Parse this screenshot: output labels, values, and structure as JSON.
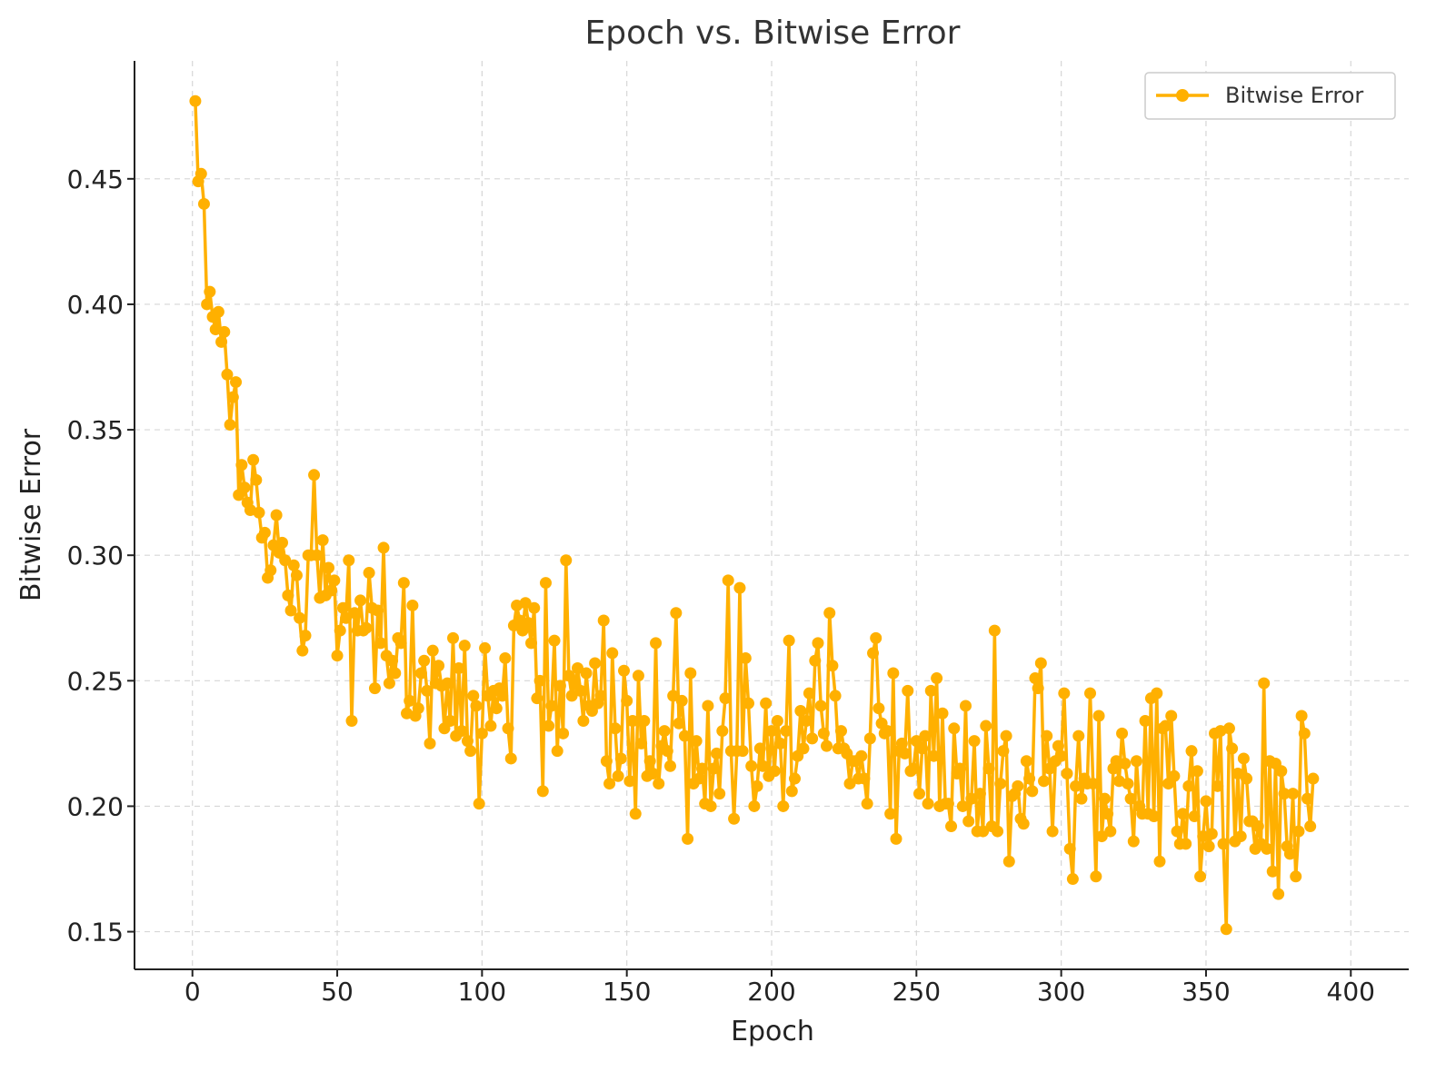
{
  "chart_data": {
    "type": "line",
    "title": "Epoch vs. Bitwise Error",
    "xlabel": "Epoch",
    "ylabel": "Bitwise Error",
    "xlim": [
      -20,
      420
    ],
    "ylim": [
      0.135,
      0.497
    ],
    "xticks": [
      0,
      50,
      100,
      150,
      200,
      250,
      300,
      350,
      400
    ],
    "xtick_labels": [
      "0",
      "50",
      "100",
      "150",
      "200",
      "250",
      "300",
      "350",
      "400"
    ],
    "yticks": [
      0.15,
      0.2,
      0.25,
      0.3,
      0.35,
      0.4,
      0.45
    ],
    "ytick_labels": [
      "0.15",
      "0.20",
      "0.25",
      "0.30",
      "0.35",
      "0.40",
      "0.45"
    ],
    "grid": true,
    "legend_position": "top-right",
    "series": [
      {
        "name": "Bitwise Error",
        "color": "#FFB000",
        "marker": "circle",
        "x_start": 1,
        "x_step": 1,
        "y": [
          0.481,
          0.449,
          0.452,
          0.44,
          0.4,
          0.405,
          0.395,
          0.39,
          0.397,
          0.385,
          0.389,
          0.372,
          0.352,
          0.363,
          0.369,
          0.324,
          0.336,
          0.327,
          0.321,
          0.318,
          0.338,
          0.33,
          0.317,
          0.307,
          0.309,
          0.291,
          0.294,
          0.304,
          0.316,
          0.301,
          0.305,
          0.298,
          0.284,
          0.278,
          0.296,
          0.292,
          0.275,
          0.262,
          0.268,
          0.3,
          0.3,
          0.332,
          0.3,
          0.283,
          0.306,
          0.284,
          0.295,
          0.286,
          0.29,
          0.26,
          0.27,
          0.279,
          0.275,
          0.298,
          0.234,
          0.277,
          0.27,
          0.282,
          0.27,
          0.271,
          0.293,
          0.279,
          0.247,
          0.278,
          0.265,
          0.303,
          0.26,
          0.249,
          0.258,
          0.253,
          0.267,
          0.265,
          0.289,
          0.237,
          0.242,
          0.28,
          0.236,
          0.239,
          0.253,
          0.258,
          0.246,
          0.225,
          0.262,
          0.249,
          0.256,
          0.248,
          0.231,
          0.249,
          0.234,
          0.267,
          0.228,
          0.255,
          0.23,
          0.264,
          0.226,
          0.222,
          0.244,
          0.24,
          0.201,
          0.229,
          0.263,
          0.244,
          0.232,
          0.246,
          0.239,
          0.247,
          0.244,
          0.259,
          0.231,
          0.219,
          0.272,
          0.28,
          0.274,
          0.27,
          0.281,
          0.273,
          0.265,
          0.279,
          0.243,
          0.25,
          0.206,
          0.289,
          0.232,
          0.24,
          0.266,
          0.222,
          0.248,
          0.229,
          0.298,
          0.252,
          0.244,
          0.249,
          0.255,
          0.246,
          0.234,
          0.253,
          0.24,
          0.238,
          0.257,
          0.241,
          0.244,
          0.274,
          0.218,
          0.209,
          0.261,
          0.231,
          0.212,
          0.219,
          0.254,
          0.242,
          0.21,
          0.234,
          0.197,
          0.252,
          0.225,
          0.234,
          0.212,
          0.218,
          0.213,
          0.265,
          0.209,
          0.224,
          0.23,
          0.222,
          0.216,
          0.244,
          0.277,
          0.233,
          0.242,
          0.228,
          0.187,
          0.253,
          0.209,
          0.226,
          0.211,
          0.215,
          0.201,
          0.24,
          0.2,
          0.215,
          0.221,
          0.205,
          0.23,
          0.243,
          0.29,
          0.222,
          0.195,
          0.222,
          0.287,
          0.222,
          0.259,
          0.241,
          0.216,
          0.2,
          0.208,
          0.223,
          0.216,
          0.241,
          0.212,
          0.23,
          0.214,
          0.234,
          0.225,
          0.2,
          0.23,
          0.266,
          0.206,
          0.211,
          0.22,
          0.238,
          0.223,
          0.234,
          0.245,
          0.227,
          0.258,
          0.265,
          0.24,
          0.229,
          0.224,
          0.277,
          0.256,
          0.244,
          0.223,
          0.23,
          0.223,
          0.221,
          0.209,
          0.218,
          0.218,
          0.211,
          0.22,
          0.211,
          0.201,
          0.227,
          0.261,
          0.267,
          0.239,
          0.233,
          0.229,
          0.23,
          0.197,
          0.253,
          0.187,
          0.222,
          0.225,
          0.221,
          0.246,
          0.214,
          0.215,
          0.226,
          0.205,
          0.223,
          0.228,
          0.201,
          0.246,
          0.22,
          0.251,
          0.2,
          0.237,
          0.201,
          0.201,
          0.192,
          0.231,
          0.213,
          0.215,
          0.2,
          0.24,
          0.194,
          0.203,
          0.226,
          0.19,
          0.205,
          0.19,
          0.232,
          0.215,
          0.192,
          0.27,
          0.19,
          0.209,
          0.222,
          0.228,
          0.178,
          0.204,
          0.205,
          0.208,
          0.195,
          0.193,
          0.218,
          0.211,
          0.206,
          0.251,
          0.247,
          0.257,
          0.21,
          0.228,
          0.215,
          0.19,
          0.218,
          0.224,
          0.22,
          0.245,
          0.213,
          0.183,
          0.171,
          0.208,
          0.228,
          0.203,
          0.211,
          0.209,
          0.245,
          0.209,
          0.172,
          0.236,
          0.188,
          0.203,
          0.197,
          0.19,
          0.215,
          0.218,
          0.21,
          0.229,
          0.217,
          0.209,
          0.203,
          0.186,
          0.218,
          0.2,
          0.197,
          0.234,
          0.197,
          0.243,
          0.196,
          0.245,
          0.178,
          0.231,
          0.232,
          0.209,
          0.236,
          0.212,
          0.19,
          0.185,
          0.197,
          0.185,
          0.208,
          0.222,
          0.196,
          0.214,
          0.172,
          0.188,
          0.202,
          0.184,
          0.189,
          0.229,
          0.208,
          0.23,
          0.185,
          0.151,
          0.231,
          0.223,
          0.186,
          0.213,
          0.188,
          0.219,
          0.211,
          0.194,
          0.194,
          0.183,
          0.192,
          0.185,
          0.249,
          0.183,
          0.218,
          0.174,
          0.217,
          0.165,
          0.214,
          0.205,
          0.184,
          0.181,
          0.205,
          0.172,
          0.19,
          0.236,
          0.229,
          0.203,
          0.192,
          0.211
        ]
      }
    ]
  }
}
